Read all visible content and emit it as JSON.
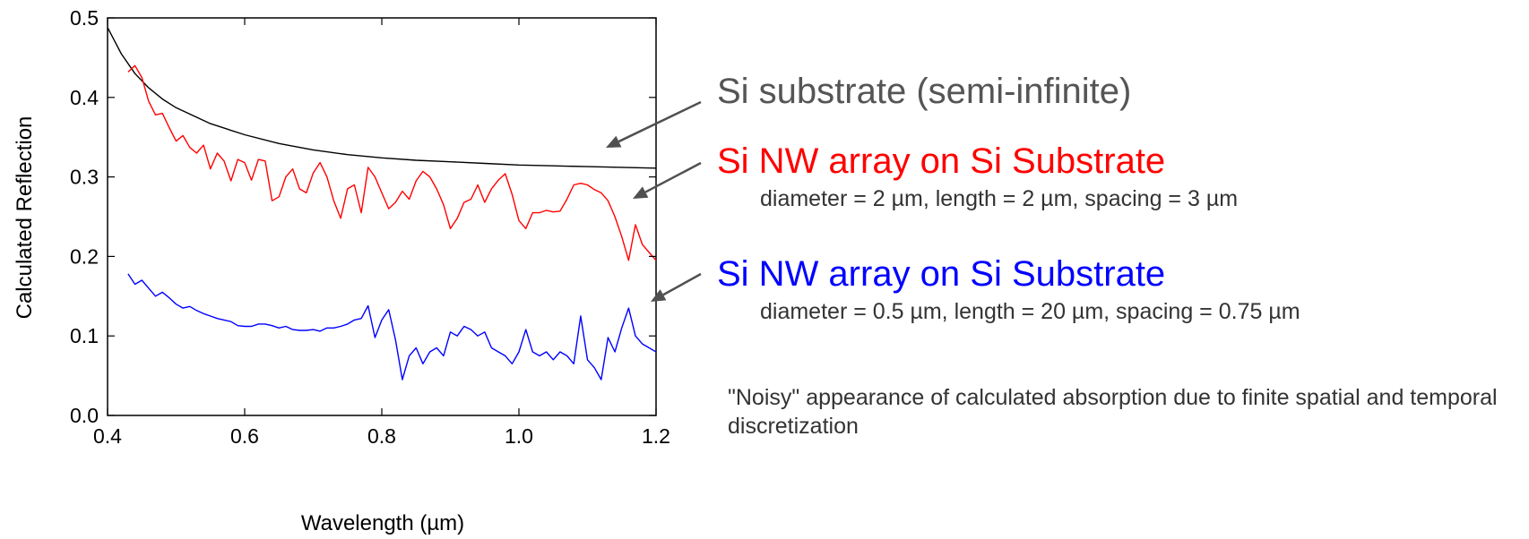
{
  "chart_data": {
    "type": "line",
    "xlabel": "Wavelength (µm)",
    "ylabel": "Calculated Reflection",
    "xlim": [
      0.4,
      1.2
    ],
    "ylim": [
      0.0,
      0.5
    ],
    "xticks": [
      "0.4",
      "0.6",
      "0.8",
      "1.0",
      "1.2"
    ],
    "yticks": [
      "0.0",
      "0.1",
      "0.2",
      "0.3",
      "0.4",
      "0.5"
    ],
    "grid": false,
    "series": [
      {
        "name": "Si substrate (semi-infinite)",
        "color": "#000000",
        "x": [
          0.4,
          0.42,
          0.44,
          0.46,
          0.48,
          0.5,
          0.55,
          0.6,
          0.65,
          0.7,
          0.75,
          0.8,
          0.85,
          0.9,
          0.95,
          1.0,
          1.05,
          1.1,
          1.15,
          1.2
        ],
        "y": [
          0.488,
          0.455,
          0.43,
          0.412,
          0.398,
          0.387,
          0.367,
          0.353,
          0.342,
          0.334,
          0.328,
          0.324,
          0.321,
          0.319,
          0.317,
          0.315,
          0.314,
          0.313,
          0.312,
          0.311
        ]
      },
      {
        "name": "Si NW array on Si Substrate",
        "color": "#ff0000",
        "x": [
          0.43,
          0.44,
          0.45,
          0.46,
          0.47,
          0.48,
          0.49,
          0.5,
          0.51,
          0.52,
          0.53,
          0.54,
          0.55,
          0.56,
          0.57,
          0.58,
          0.59,
          0.6,
          0.61,
          0.62,
          0.63,
          0.64,
          0.65,
          0.66,
          0.67,
          0.68,
          0.69,
          0.7,
          0.71,
          0.72,
          0.73,
          0.74,
          0.75,
          0.76,
          0.77,
          0.78,
          0.79,
          0.8,
          0.81,
          0.82,
          0.83,
          0.84,
          0.85,
          0.86,
          0.87,
          0.88,
          0.89,
          0.9,
          0.91,
          0.92,
          0.93,
          0.94,
          0.95,
          0.96,
          0.97,
          0.98,
          0.99,
          1.0,
          1.01,
          1.02,
          1.03,
          1.04,
          1.05,
          1.06,
          1.07,
          1.08,
          1.09,
          1.1,
          1.11,
          1.12,
          1.13,
          1.14,
          1.15,
          1.16,
          1.17,
          1.18,
          1.19,
          1.2
        ],
        "y": [
          0.432,
          0.44,
          0.425,
          0.395,
          0.378,
          0.38,
          0.362,
          0.345,
          0.352,
          0.337,
          0.33,
          0.34,
          0.31,
          0.33,
          0.32,
          0.295,
          0.322,
          0.318,
          0.296,
          0.322,
          0.32,
          0.27,
          0.275,
          0.3,
          0.31,
          0.285,
          0.28,
          0.305,
          0.318,
          0.3,
          0.27,
          0.248,
          0.285,
          0.29,
          0.255,
          0.312,
          0.3,
          0.28,
          0.26,
          0.268,
          0.282,
          0.272,
          0.295,
          0.307,
          0.3,
          0.285,
          0.265,
          0.235,
          0.248,
          0.268,
          0.272,
          0.29,
          0.268,
          0.285,
          0.296,
          0.304,
          0.278,
          0.245,
          0.235,
          0.255,
          0.255,
          0.258,
          0.256,
          0.257,
          0.272,
          0.29,
          0.292,
          0.29,
          0.284,
          0.28,
          0.27,
          0.25,
          0.225,
          0.195,
          0.24,
          0.215,
          0.205,
          0.195
        ],
        "y_note": "values up to x=1.20"
      },
      {
        "name": "Si NW array on Si Substrate",
        "color": "#0000ff",
        "x": [
          0.43,
          0.44,
          0.45,
          0.46,
          0.47,
          0.48,
          0.49,
          0.5,
          0.51,
          0.52,
          0.53,
          0.54,
          0.55,
          0.56,
          0.57,
          0.58,
          0.59,
          0.6,
          0.61,
          0.62,
          0.63,
          0.64,
          0.65,
          0.66,
          0.67,
          0.68,
          0.69,
          0.7,
          0.71,
          0.72,
          0.73,
          0.74,
          0.75,
          0.76,
          0.77,
          0.78,
          0.79,
          0.8,
          0.81,
          0.82,
          0.83,
          0.84,
          0.85,
          0.86,
          0.87,
          0.88,
          0.89,
          0.9,
          0.91,
          0.92,
          0.93,
          0.94,
          0.95,
          0.96,
          0.97,
          0.98,
          0.99,
          1.0,
          1.01,
          1.02,
          1.03,
          1.04,
          1.05,
          1.06,
          1.07,
          1.08,
          1.09,
          1.1,
          1.11,
          1.12,
          1.13,
          1.14,
          1.15,
          1.16,
          1.17,
          1.18,
          1.19,
          1.2
        ],
        "y": [
          0.178,
          0.165,
          0.17,
          0.16,
          0.15,
          0.155,
          0.148,
          0.14,
          0.135,
          0.137,
          0.132,
          0.128,
          0.125,
          0.122,
          0.12,
          0.118,
          0.113,
          0.112,
          0.112,
          0.115,
          0.115,
          0.113,
          0.11,
          0.112,
          0.108,
          0.107,
          0.107,
          0.108,
          0.106,
          0.11,
          0.11,
          0.112,
          0.115,
          0.12,
          0.122,
          0.138,
          0.098,
          0.12,
          0.133,
          0.095,
          0.045,
          0.075,
          0.085,
          0.065,
          0.08,
          0.085,
          0.075,
          0.105,
          0.1,
          0.112,
          0.108,
          0.1,
          0.105,
          0.085,
          0.08,
          0.075,
          0.065,
          0.08,
          0.108,
          0.08,
          0.075,
          0.08,
          0.07,
          0.08,
          0.075,
          0.065,
          0.125,
          0.07,
          0.06,
          0.045,
          0.098,
          0.08,
          0.11,
          0.135,
          0.1,
          0.09,
          0.085,
          0.08
        ]
      }
    ]
  },
  "annotations": {
    "substrate_label": "Si substrate (semi-infinite)",
    "red_label": "Si NW array on Si Substrate",
    "red_details": "diameter = 2 µm, length = 2 µm, spacing = 3 µm",
    "blue_label": "Si NW array on Si Substrate",
    "blue_details": "diameter = 0.5 µm, length = 20 µm, spacing = 0.75 µm",
    "note": "\"Noisy\" appearance of calculated absorption due to finite spatial and temporal discretization",
    "colors": {
      "substrate_label": "#555555",
      "red_label": "#ff0000",
      "blue_label": "#0000ff",
      "arrow": "#505050"
    }
  }
}
